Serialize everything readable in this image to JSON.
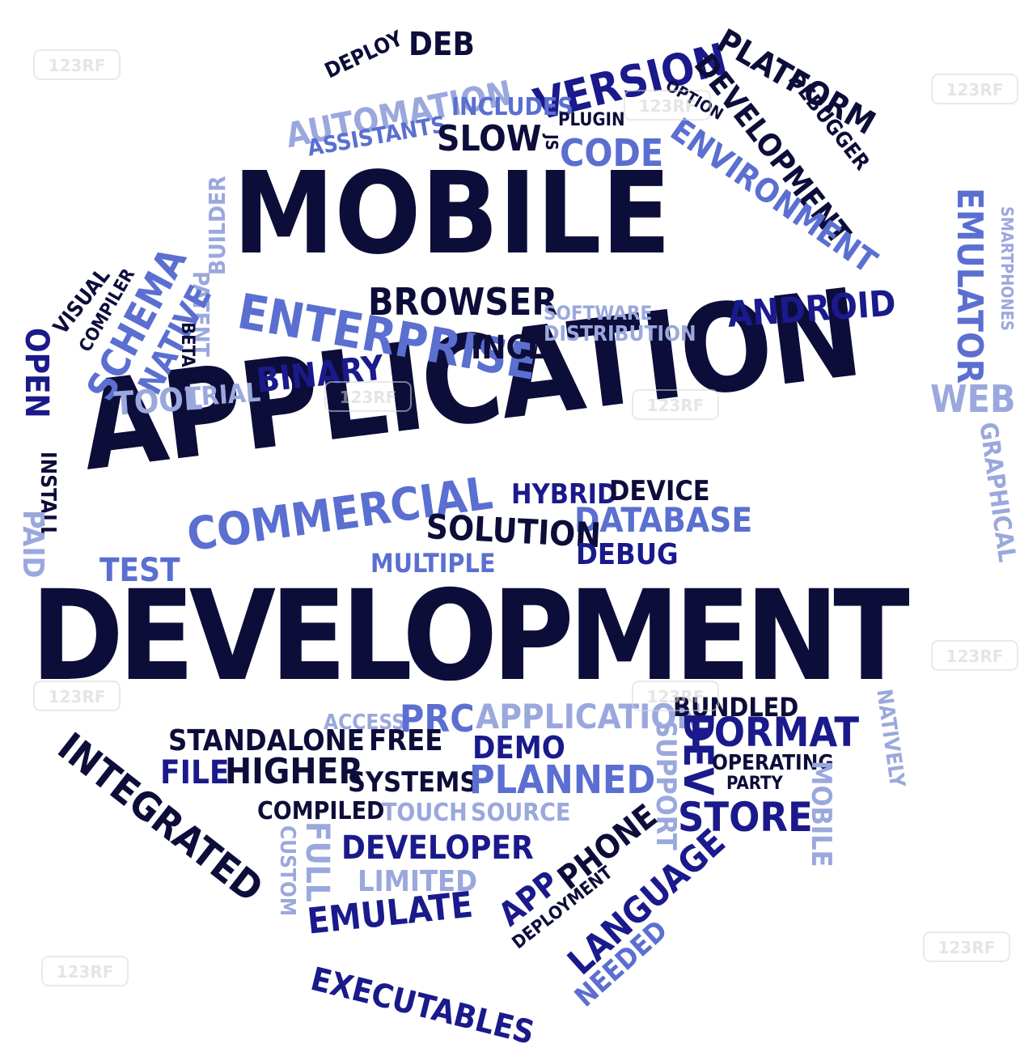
{
  "colors": {
    "navy": "#0d0d3a",
    "blue": "#1a1a8c",
    "medium_blue": "#5a6fd0",
    "light_blue": "#9aa8dd"
  },
  "headline": {
    "line1": "MOBILE",
    "line2": "APPLICATION",
    "line3": "DEVELOPMENT"
  },
  "words": {
    "deploy": "DEPLOY",
    "deb": "DEB",
    "version": "VERSION",
    "platform": "PLATFORM",
    "automation": "AUTOMATION",
    "option": "OPTION",
    "debugger": "DEBUGGER",
    "development_small": "DEVELOPMENT",
    "assistants": "ASSISTANTS",
    "includes": "INCLUDES",
    "plugin": "PLUGIN",
    "slow": "SLOW",
    "js": "JS",
    "code": "CODE",
    "environment": "ENVIRONMENT",
    "builder": "BUILDER",
    "emulator": "EMULATOR",
    "smartphones": "SMARTPHONES",
    "visual": "VISUAL",
    "compiler": "COMPILER",
    "schema": "SCHEMA",
    "native": "NATIVE",
    "patent": "PATENT",
    "open": "OPEN",
    "beta": "BETA",
    "browser": "BROWSER",
    "enterprise": "ENTERPRISE",
    "incl": "INCL",
    "software": "SOFTWARE",
    "distribution": "DISTRIBUTION",
    "android": "ANDROID",
    "binary": "BINARY",
    "tool": "TOOL",
    "trial": "TRIAL",
    "web": "WEB",
    "graphical": "GRAPHICAL",
    "install": "INSTALL",
    "paid": "PAID",
    "hybrid": "HYBRID",
    "device": "DEVICE",
    "database": "DATABASE",
    "test": "TEST",
    "commercial": "COMMERCIAL",
    "solution": "SOLUTION",
    "multiple": "MULTIPLE",
    "debug": "DEBUG",
    "access": "ACCESS",
    "prc": "PRC",
    "application_small": "APPLICATION",
    "bundled": "BUNDLED",
    "natively": "NATIVELY",
    "standalone": "STANDALONE",
    "free": "FREE",
    "demo": "DEMO",
    "format": "FORMAT",
    "dev": "DEV",
    "operating": "OPERATING",
    "integrated": "INTEGRATED",
    "file": "FILE",
    "higher": "HIGHER",
    "systems": "SYSTEMS",
    "planned": "PLANNED",
    "support": "SUPPORT",
    "party": "PARTY",
    "mobile_small": "MOBILE",
    "compiled": "COMPILED",
    "touch": "TOUCH",
    "source": "SOURCE",
    "store": "STORE",
    "full": "FULL",
    "custom": "CUSTOM",
    "developer": "DEVELOPER",
    "phone": "PHONE",
    "limited": "LIMITED",
    "app": "APP",
    "deployment": "DEPLOYMENT",
    "language": "LANGUAGE",
    "emulate": "EMULATE",
    "needed": "NEEDED",
    "executables": "EXECUTABLES"
  },
  "watermark": {
    "text": "123RF"
  }
}
